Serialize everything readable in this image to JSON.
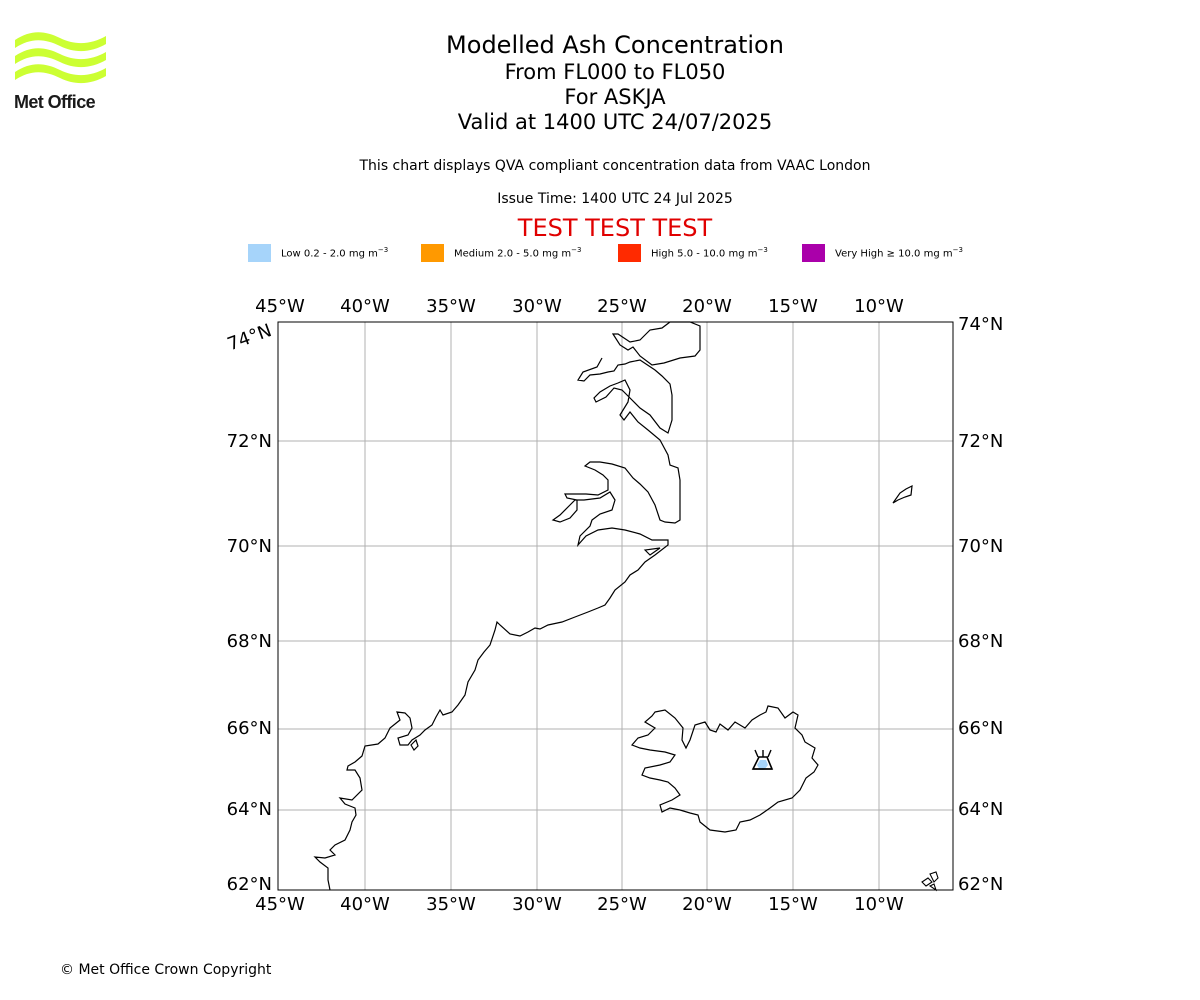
{
  "logo": {
    "text": "Met Office",
    "color": "#ccff33"
  },
  "title": {
    "line1": "Modelled Ash Concentration",
    "line2": "From FL000 to FL050",
    "line3": "For ASKJA",
    "line4": "Valid at 1400 UTC 24/07/2025"
  },
  "subtitle": "This chart displays QVA compliant concentration data from VAAC London",
  "issue_time": "Issue Time: 1400 UTC 24 Jul 2025",
  "test_banner": "TEST TEST TEST",
  "legend": [
    {
      "label": "Low 0.2 - 2.0 mg m",
      "color": "#a6d4fa"
    },
    {
      "label": "Medium 2.0 - 5.0 mg m",
      "color": "#ff9900"
    },
    {
      "label": "High 5.0 - 10.0 mg m",
      "color": "#ff2a00"
    },
    {
      "label": "Very High ≥ 10.0 mg m",
      "color": "#aa00aa"
    }
  ],
  "legend_unit_exponent": "−3",
  "map": {
    "lon_labels": [
      "45°W",
      "40°W",
      "35°W",
      "30°W",
      "25°W",
      "20°W",
      "15°W",
      "10°W"
    ],
    "lat_labels": [
      "74°N",
      "72°N",
      "70°N",
      "68°N",
      "66°N",
      "64°N",
      "62°N"
    ],
    "volcano": "ASKJA"
  },
  "copyright": "© Met Office Crown Copyright"
}
